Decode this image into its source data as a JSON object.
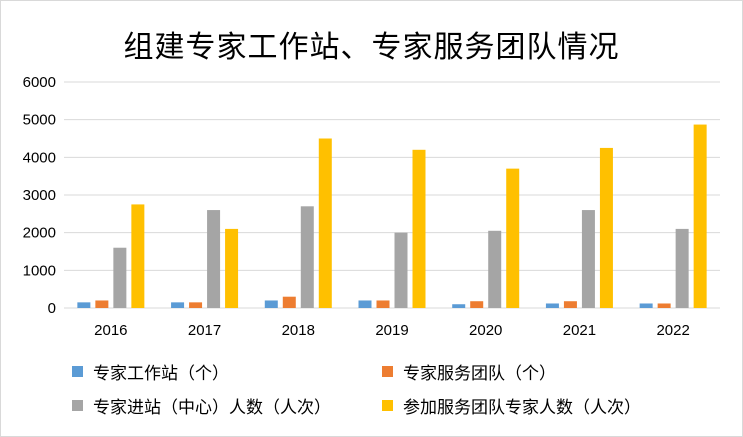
{
  "colors": {
    "series1": "#5b9bd5",
    "series2": "#ed7d31",
    "series3": "#a5a5a5",
    "series4": "#ffc000",
    "grid": "#d9d9d9"
  },
  "chart_data": {
    "type": "bar",
    "title": "组建专家工作站、专家服务团队情况",
    "xlabel": "",
    "ylabel": "",
    "ylim": [
      0,
      6000
    ],
    "yticks": [
      "0",
      "1000",
      "2000",
      "3000",
      "4000",
      "5000",
      "6000"
    ],
    "grid": true,
    "legend_position": "bottom",
    "categories": [
      "2016",
      "2017",
      "2018",
      "2019",
      "2020",
      "2021",
      "2022"
    ],
    "series": [
      {
        "name": "专家工作站（个）",
        "values": [
          150,
          150,
          200,
          200,
          100,
          120,
          120
        ]
      },
      {
        "name": "专家服务团队（个）",
        "values": [
          200,
          150,
          300,
          200,
          180,
          180,
          120
        ]
      },
      {
        "name": "专家进站（中心）人数（人次）",
        "values": [
          1600,
          2600,
          2700,
          2000,
          2050,
          2600,
          2100
        ]
      },
      {
        "name": "参加服务团队专家人数（人次）",
        "values": [
          2750,
          2100,
          4500,
          4200,
          3700,
          4250,
          4870
        ]
      }
    ]
  }
}
